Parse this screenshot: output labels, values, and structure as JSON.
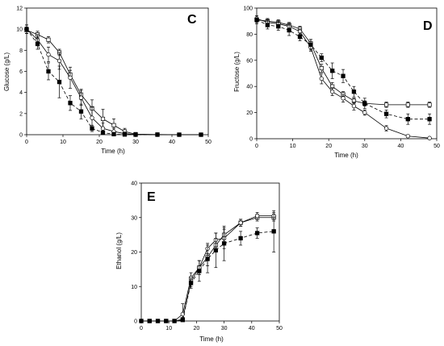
{
  "chart_data": [
    {
      "type": "line",
      "panel_label": "C",
      "xlabel": "Time (h)",
      "ylabel": "Glucose (g/L)",
      "xlim": [
        0,
        50
      ],
      "ylim": [
        0,
        12
      ],
      "xticks": [
        0,
        10,
        20,
        30,
        40,
        50
      ],
      "yticks": [
        0,
        2,
        4,
        6,
        8,
        10,
        12
      ],
      "grid": false,
      "series": [
        {
          "marker": "open-square",
          "dash": "solid",
          "x": [
            0,
            3,
            6,
            9,
            12,
            15,
            18,
            21,
            24,
            27,
            30,
            36,
            42,
            48
          ],
          "y": [
            9.9,
            9.5,
            9.0,
            7.8,
            5.7,
            3.8,
            2.5,
            1.5,
            0.9,
            0.3,
            0.05,
            0.02,
            0,
            0
          ],
          "err": [
            0.3,
            0.3,
            0.3,
            0.3,
            0.4,
            0.5,
            0.8,
            0.9,
            0.6,
            0.3,
            0.1,
            0,
            0,
            0
          ]
        },
        {
          "marker": "open-circle",
          "dash": "solid",
          "x": [
            0,
            3,
            6,
            9,
            12,
            15,
            18,
            21,
            24,
            27,
            30,
            36,
            42,
            48
          ],
          "y": [
            10.0,
            9.0,
            7.6,
            7.0,
            5.4,
            3.5,
            1.6,
            0.6,
            0.3,
            0.1,
            0.03,
            0,
            0,
            0
          ],
          "err": [
            0.4,
            0.5,
            0.7,
            0.8,
            1.0,
            0.7,
            1.0,
            0.5,
            0.3,
            0.1,
            0,
            0,
            0,
            0
          ]
        },
        {
          "marker": "filled-square",
          "dash": "dashed",
          "x": [
            0,
            3,
            6,
            9,
            12,
            15,
            18,
            21,
            24,
            27,
            30,
            36,
            42,
            48
          ],
          "y": [
            10.0,
            8.6,
            6.0,
            5.0,
            3.0,
            2.2,
            0.6,
            0.2,
            0.05,
            0.02,
            0,
            0,
            0,
            0
          ],
          "err": [
            0.4,
            0.5,
            0.8,
            1.5,
            0.7,
            0.7,
            0.3,
            0.1,
            0,
            0,
            0,
            0,
            0,
            0
          ]
        }
      ]
    },
    {
      "type": "line",
      "panel_label": "D",
      "xlabel": "Time (h)",
      "ylabel": "Fructose (g/L)",
      "xlim": [
        0,
        50
      ],
      "ylim": [
        0,
        100
      ],
      "xticks": [
        0,
        10,
        20,
        30,
        40,
        50
      ],
      "yticks": [
        0,
        20,
        40,
        60,
        80,
        100
      ],
      "grid": false,
      "series": [
        {
          "marker": "open-square",
          "dash": "solid",
          "x": [
            0,
            3,
            6,
            9,
            12,
            15,
            18,
            21,
            24,
            27,
            30,
            36,
            42,
            48
          ],
          "y": [
            91,
            90,
            89,
            87,
            84,
            73,
            54,
            40,
            34,
            29,
            27,
            26,
            26,
            26
          ],
          "err": [
            2,
            2,
            2,
            2,
            2,
            3,
            3,
            3,
            2,
            2,
            2,
            2,
            2,
            2
          ]
        },
        {
          "marker": "open-circle",
          "dash": "solid",
          "x": [
            0,
            3,
            6,
            9,
            12,
            15,
            18,
            21,
            24,
            27,
            30,
            36,
            42,
            48
          ],
          "y": [
            92,
            89,
            88,
            86,
            82,
            70,
            46,
            36,
            31,
            25,
            20,
            8,
            2,
            0.5
          ],
          "err": [
            2,
            2,
            2,
            2,
            2,
            3,
            4,
            3,
            3,
            3,
            2,
            2,
            1,
            0
          ]
        },
        {
          "marker": "filled-square",
          "dash": "dashed",
          "x": [
            0,
            3,
            6,
            9,
            12,
            15,
            18,
            21,
            24,
            27,
            30,
            36,
            42,
            48
          ],
          "y": [
            91,
            87,
            86,
            83,
            78,
            72,
            62,
            52,
            48,
            36,
            27,
            19,
            15,
            15
          ],
          "err": [
            3,
            3,
            3,
            4,
            3,
            4,
            3,
            6,
            5,
            4,
            4,
            3,
            4,
            4
          ]
        }
      ]
    },
    {
      "type": "line",
      "panel_label": "E",
      "xlabel": "Time (h)",
      "ylabel": "Ethanol (g/L)",
      "xlim": [
        0,
        50
      ],
      "ylim": [
        0,
        40
      ],
      "xticks": [
        0,
        10,
        20,
        30,
        40,
        50
      ],
      "yticks": [
        0,
        10,
        20,
        30,
        40
      ],
      "grid": false,
      "series": [
        {
          "marker": "open-square",
          "dash": "solid",
          "x": [
            0,
            3,
            6,
            9,
            12,
            15,
            18,
            21,
            24,
            27,
            30,
            36,
            42,
            48
          ],
          "y": [
            0,
            0,
            0,
            0,
            0,
            0.5,
            11.5,
            15.5,
            18.5,
            22.0,
            25.0,
            28.5,
            30.0,
            30.0
          ],
          "err": [
            0,
            0,
            0,
            0,
            0,
            1.5,
            1.5,
            2.0,
            2.5,
            2.0,
            1.5,
            1.0,
            1.0,
            1.0
          ]
        },
        {
          "marker": "open-circle",
          "dash": "solid",
          "x": [
            0,
            3,
            6,
            9,
            12,
            15,
            18,
            21,
            24,
            27,
            30,
            36,
            42,
            48
          ],
          "y": [
            0,
            0,
            0,
            0,
            0,
            2.0,
            12.5,
            15.5,
            21.0,
            23.5,
            24.0,
            28.5,
            30.5,
            30.5
          ],
          "err": [
            0,
            0,
            0,
            0,
            0,
            3.0,
            1.5,
            2.0,
            1.5,
            2.0,
            3.0,
            1.0,
            1.0,
            1.0
          ]
        },
        {
          "marker": "filled-square",
          "dash": "dashed",
          "x": [
            0,
            3,
            6,
            9,
            12,
            15,
            18,
            21,
            24,
            27,
            30,
            36,
            42,
            48
          ],
          "y": [
            0,
            0,
            0,
            0,
            0,
            0.3,
            11.0,
            14.5,
            18.0,
            20.5,
            22.5,
            24.0,
            25.5,
            26.0
          ],
          "err": [
            0,
            0,
            0,
            0,
            0,
            0.5,
            1.5,
            3.0,
            4.0,
            5.0,
            5.0,
            2.0,
            1.5,
            6.0
          ]
        }
      ]
    }
  ]
}
